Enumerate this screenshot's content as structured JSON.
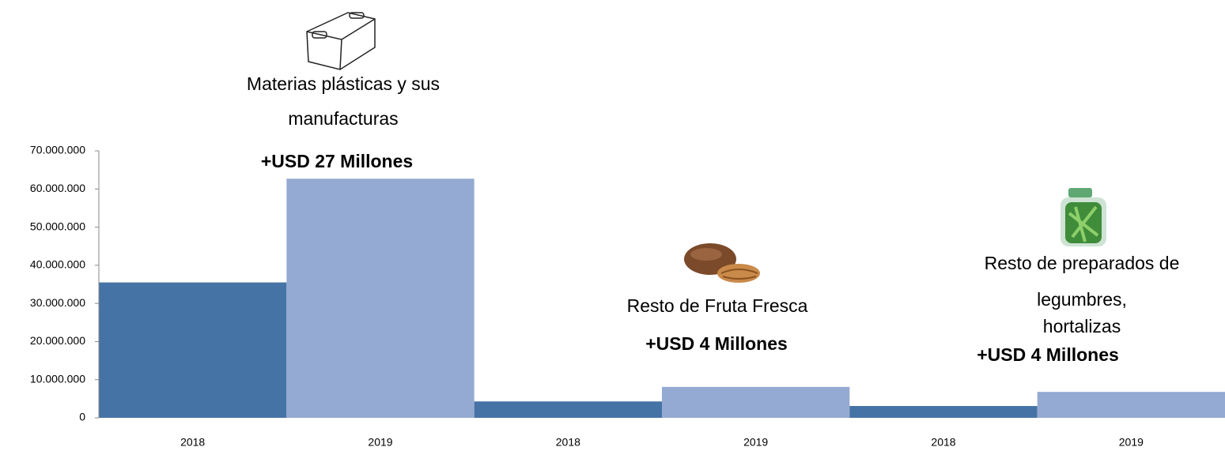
{
  "chart_data": {
    "type": "bar",
    "categories": [
      "2018",
      "2019",
      "2018",
      "2019",
      "2018",
      "2019"
    ],
    "values": [
      35500000,
      62700000,
      4300000,
      8100000,
      3100000,
      6800000
    ],
    "colors": [
      "#4673a6",
      "#95aad2",
      "#4673a6",
      "#95aad2",
      "#4673a6",
      "#95aad2"
    ],
    "ylim": [
      0,
      70000000
    ],
    "yticks": [
      0,
      {
        "value": 10000000,
        "label": "10.000.000"
      },
      {
        "value": 20000000,
        "label": "20.000.000"
      },
      {
        "value": 30000000,
        "label": "30.000.000"
      },
      {
        "value": 40000000,
        "label": "40.000.000"
      },
      {
        "value": 50000000,
        "label": "50.000.000"
      },
      {
        "value": 60000000,
        "label": "60.000.000"
      },
      {
        "value": 70000000,
        "label": "70.000.000"
      }
    ],
    "annotations": [
      {
        "lines": [
          "Materias plásticas y sus",
          "manufacturas"
        ],
        "amount": "+USD 27 Millones"
      },
      {
        "lines": [
          "Resto de Fruta Fresca"
        ],
        "amount": "+USD 4 Millones"
      },
      {
        "lines": [
          "Resto de preparados de",
          "legumbres,",
          "hortalizas"
        ],
        "amount": "+USD 4 Millones"
      }
    ]
  }
}
